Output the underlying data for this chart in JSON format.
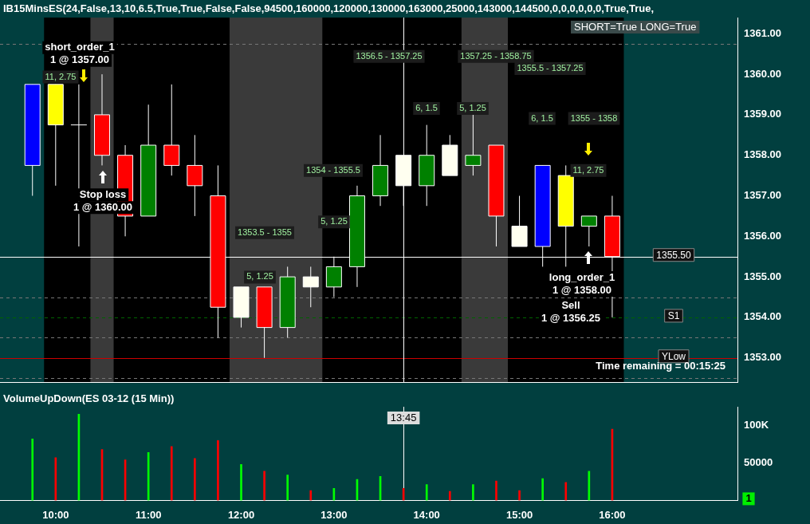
{
  "chart_data": [
    {
      "type": "candlestick",
      "title": "IB15MinsES(24,False,13,10,6.5,True,True,False,False,94500,160000,120000,130000,163000,25000,143000,144500,0,0,0,0,0,0,True,True,",
      "x": [
        9.75,
        10,
        10.25,
        10.5,
        10.75,
        11,
        11.25,
        11.5,
        11.75,
        12,
        12.25,
        12.5,
        12.75,
        13,
        13.25,
        13.5,
        13.75,
        14,
        14.25,
        14.5,
        14.75,
        15,
        15.25,
        15.5,
        15.75,
        16
      ],
      "ohlc": [
        [
          1357.75,
          1359.75,
          1357,
          1359.75
        ],
        [
          1359.75,
          1359.75,
          1357.25,
          1358.75
        ],
        [
          1358.75,
          1359.75,
          1355.75,
          1358.75
        ],
        [
          1359,
          1360,
          1357.75,
          1358
        ],
        [
          1358,
          1358.25,
          1356,
          1356.5
        ],
        [
          1356.5,
          1359.25,
          1356.5,
          1358.25
        ],
        [
          1358.25,
          1359.75,
          1357.5,
          1357.75
        ],
        [
          1357.75,
          1358.5,
          1356.5,
          1357.25
        ],
        [
          1357,
          1357.75,
          1353.5,
          1354.25
        ],
        [
          1354,
          1354.75,
          1353.75,
          1354.75
        ],
        [
          1354.75,
          1354.75,
          1353,
          1353.75
        ],
        [
          1353.75,
          1355.25,
          1353.5,
          1355
        ],
        [
          1354.75,
          1355.25,
          1354.25,
          1355
        ],
        [
          1354.75,
          1355.5,
          1354.5,
          1355.25
        ],
        [
          1355.25,
          1357.25,
          1354.75,
          1357
        ],
        [
          1357,
          1358.5,
          1356.75,
          1357.75
        ],
        [
          1357.25,
          1358,
          1356.75,
          1358
        ],
        [
          1357.25,
          1358.75,
          1356.75,
          1358
        ],
        [
          1357.5,
          1358.5,
          1357.5,
          1358.25
        ],
        [
          1357.75,
          1359,
          1357.5,
          1358
        ],
        [
          1358.25,
          1358.25,
          1355.75,
          1356.5
        ],
        [
          1355.75,
          1357,
          1355.75,
          1356.25
        ],
        [
          1355.75,
          1357.75,
          1355.25,
          1357.75
        ],
        [
          1357.5,
          1357.75,
          1355.25,
          1356.25
        ],
        [
          1356.25,
          1356.5,
          1355.75,
          1356.5
        ],
        [
          1356.5,
          1357,
          1354,
          1355.5
        ]
      ],
      "colors": [
        "#0000ff",
        "#ffff00",
        "#ffffff",
        "#ff0000",
        "#ff0000",
        "#008000",
        "#ff0000",
        "#ff0000",
        "#ff0000",
        "#fffff0",
        "#ff0000",
        "#008000",
        "#fffff0",
        "#008000",
        "#008000",
        "#008000",
        "#fffff0",
        "#008000",
        "#fffff0",
        "#008000",
        "#ff0000",
        "#fffff0",
        "#0000ff",
        "#ffff00",
        "#008000",
        "#ff0000"
      ],
      "xlim": [
        9.4,
        17.35
      ],
      "ylim": [
        1352.4,
        1361.4
      ],
      "yticks": [
        {
          "value": 1353,
          "label": "1353.00"
        },
        {
          "value": 1354,
          "label": "1354.00"
        },
        {
          "value": 1355,
          "label": "1355.00"
        },
        {
          "value": 1356,
          "label": "1356.00"
        },
        {
          "value": 1357,
          "label": "1357.00"
        },
        {
          "value": 1358,
          "label": "1358.00"
        },
        {
          "value": 1359,
          "label": "1359.00"
        },
        {
          "value": 1360,
          "label": "1360.00"
        },
        {
          "value": 1361,
          "label": "1361.00"
        }
      ],
      "tick_labels": "y",
      "bands": [
        {
          "axis": "x",
          "from": 9.875,
          "to": 16.125,
          "color": "#000000"
        },
        {
          "axis": "x",
          "from": 10.375,
          "to": 10.625,
          "color": "#3a3a3a"
        },
        {
          "axis": "x",
          "from": 11.875,
          "to": 12.875,
          "color": "#3a3a3a"
        },
        {
          "axis": "x",
          "from": 14.375,
          "to": 14.875,
          "color": "#3a3a3a"
        }
      ],
      "ref_lines": [
        {
          "axis": "y",
          "value": 1360.75,
          "color": "#777777",
          "line_style": "dashed"
        },
        {
          "axis": "y",
          "value": 1354.5,
          "color": "#777777",
          "line_style": "dashed"
        },
        {
          "axis": "y",
          "value": 1353.5,
          "color": "#777777",
          "line_style": "dashed"
        },
        {
          "axis": "y",
          "value": 1352.5,
          "color": "#777777",
          "line_style": "dashed"
        },
        {
          "axis": "y",
          "value": 1354,
          "label": "S1",
          "color": "#006400",
          "line_style": "dashed"
        },
        {
          "axis": "y",
          "value": 1353,
          "label": "YLow",
          "color": "#cc0000",
          "line_style": "solid"
        },
        {
          "axis": "y",
          "value": 1355.5,
          "label": "1355.50",
          "color": "#ffffff",
          "line_style": "solid"
        },
        {
          "axis": "x",
          "value": 13.75,
          "color": "#ffffff",
          "line_style": "solid"
        }
      ],
      "annotations": [
        "SHORT=True LONG=True",
        "Time remaining = 00:15:25",
        "short_order_1\n1 @ 1357.00",
        "Stop loss\n1 @ 1360.00",
        "long_order_1\n1 @ 1358.00",
        "Sell\n1 @ 1356.25",
        "11, 2.75",
        "11, 2.75",
        "5, 1.25",
        "5, 1.25",
        "5, 1.25",
        "6, 1.5",
        "6, 1.5",
        "1353.5 - 1355",
        "1354 - 1355.5",
        "1356.5 - 1357.25",
        "1357.25 - 1358.75",
        "1355.5 - 1357.25",
        "1355 - 1358"
      ]
    },
    {
      "type": "bar",
      "title": "VolumeUpDown(ES 03-12 (15 Min))",
      "x": [
        9.75,
        10,
        10.25,
        10.5,
        10.75,
        11,
        11.25,
        11.5,
        11.75,
        12,
        12.25,
        12.5,
        12.75,
        13,
        13.25,
        13.5,
        13.75,
        14,
        14.25,
        14.5,
        14.75,
        15,
        15.25,
        15.5,
        15.75,
        16
      ],
      "values": [
        82000,
        57000,
        115000,
        68000,
        54000,
        64000,
        72000,
        56000,
        80000,
        48000,
        39000,
        34000,
        13000,
        16000,
        28000,
        32000,
        16000,
        21000,
        12000,
        21000,
        26000,
        13000,
        29000,
        24000,
        39000,
        95000
      ],
      "colors": [
        "#00ff00",
        "#ff0000",
        "#00ff00",
        "#ff0000",
        "#ff0000",
        "#00ff00",
        "#ff0000",
        "#ff0000",
        "#ff0000",
        "#00ff00",
        "#ff0000",
        "#00ff00",
        "#ff0000",
        "#00ff00",
        "#00ff00",
        "#00ff00",
        "#ff0000",
        "#00ff00",
        "#ff0000",
        "#00ff00",
        "#ff0000",
        "#ff0000",
        "#00ff00",
        "#ff0000",
        "#00ff00",
        "#ff0000"
      ],
      "xlim": [
        9.4,
        17.35
      ],
      "xticks": [
        {
          "value": 10,
          "label": "10:00"
        },
        {
          "value": 11,
          "label": "11:00"
        },
        {
          "value": 12,
          "label": "12:00"
        },
        {
          "value": 13,
          "label": "13:00"
        },
        {
          "value": 14,
          "label": "14:00"
        },
        {
          "value": 15,
          "label": "15:00"
        },
        {
          "value": 16,
          "label": "16:00"
        }
      ],
      "ylim": [
        0,
        125000
      ],
      "yticks": [
        {
          "value": 50000,
          "label": "50000"
        },
        {
          "value": 100000,
          "label": "100K"
        }
      ],
      "ref_lines": [
        {
          "axis": "x",
          "value": 13.75,
          "color": "#ffffff",
          "line_style": "solid"
        }
      ],
      "annotations": [
        "1",
        "13:45"
      ]
    }
  ]
}
